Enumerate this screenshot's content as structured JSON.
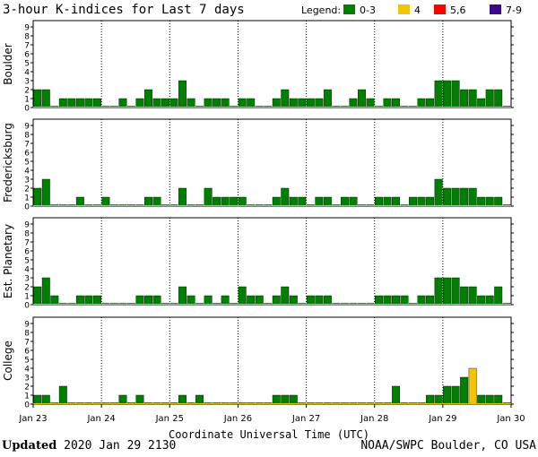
{
  "title": "3-hour K-indices for Last 7 days",
  "legend": {
    "label": "Legend:",
    "items": [
      {
        "label": "0-3",
        "color": "#008000"
      },
      {
        "label": "4",
        "color": "#f2c500"
      },
      {
        "label": "5,6",
        "color": "#ff0000"
      },
      {
        "label": "7-9",
        "color": "#3a0a8c"
      }
    ]
  },
  "footer": {
    "updated_label": "Updated",
    "updated_value": "2020 Jan 29 2130",
    "source": "NOAA/SWPC Boulder, CO USA"
  },
  "chart_data": [
    {
      "type": "bar",
      "ylabel": "Boulder",
      "ylim": [
        0,
        9
      ],
      "yticks": [
        "0",
        "1",
        "2",
        "3",
        "4",
        "5",
        "6",
        "7",
        "8",
        "9"
      ],
      "xlabel": "Coordinate Universal Time (UTC)",
      "xticks": [
        "Jan 23",
        "Jan 24",
        "Jan 25",
        "Jan 26",
        "Jan 27",
        "Jan 28",
        "Jan 29",
        "Jan 30"
      ],
      "values": [
        2,
        2,
        0,
        1,
        1,
        1,
        1,
        1,
        0,
        0,
        1,
        0,
        1,
        2,
        1,
        1,
        1,
        3,
        1,
        0,
        1,
        1,
        1,
        0,
        1,
        1,
        0,
        0,
        1,
        2,
        1,
        1,
        1,
        1,
        2,
        0,
        0,
        1,
        2,
        1,
        0,
        1,
        1,
        0,
        0,
        1,
        1,
        3,
        3,
        3,
        2,
        2,
        1,
        2,
        2,
        0
      ]
    },
    {
      "type": "bar",
      "ylabel": "Fredericksburg",
      "ylim": [
        0,
        9
      ],
      "yticks": [
        "0",
        "1",
        "2",
        "3",
        "4",
        "5",
        "6",
        "7",
        "8",
        "9"
      ],
      "values": [
        2,
        3,
        0,
        0,
        0,
        1,
        0,
        0,
        1,
        0,
        0,
        0,
        0,
        1,
        1,
        0,
        0,
        2,
        0,
        0,
        2,
        1,
        1,
        1,
        1,
        0,
        0,
        0,
        1,
        2,
        1,
        1,
        0,
        1,
        1,
        0,
        1,
        1,
        0,
        0,
        1,
        1,
        1,
        0,
        1,
        1,
        1,
        3,
        2,
        2,
        2,
        2,
        1,
        1,
        1,
        0
      ]
    },
    {
      "type": "bar",
      "ylabel": "Est. Planetary",
      "ylim": [
        0,
        9
      ],
      "yticks": [
        "0",
        "1",
        "2",
        "3",
        "4",
        "5",
        "6",
        "7",
        "8",
        "9"
      ],
      "values": [
        2,
        3,
        1,
        0,
        0,
        1,
        1,
        1,
        0,
        0,
        0,
        0,
        1,
        1,
        1,
        0,
        0,
        2,
        1,
        0,
        1,
        0,
        1,
        0,
        2,
        1,
        1,
        0,
        1,
        2,
        1,
        0,
        1,
        1,
        1,
        0,
        0,
        0,
        0,
        0,
        1,
        1,
        1,
        1,
        0,
        1,
        1,
        3,
        3,
        3,
        2,
        2,
        1,
        1,
        2,
        0
      ]
    },
    {
      "type": "bar",
      "ylabel": "College",
      "ylim": [
        0,
        9
      ],
      "yticks": [
        "0",
        "1",
        "2",
        "3",
        "4",
        "5",
        "6",
        "7",
        "8",
        "9"
      ],
      "values": [
        1,
        1,
        0,
        2,
        0,
        0,
        0,
        0,
        0,
        0,
        1,
        0,
        1,
        0,
        0,
        0,
        0,
        1,
        0,
        1,
        0,
        0,
        0,
        0,
        0,
        0,
        0,
        0,
        1,
        1,
        1,
        0,
        0,
        0,
        0,
        0,
        0,
        0,
        0,
        0,
        0,
        0,
        2,
        0,
        0,
        0,
        1,
        1,
        2,
        2,
        3,
        4,
        1,
        1,
        1,
        0
      ]
    }
  ]
}
